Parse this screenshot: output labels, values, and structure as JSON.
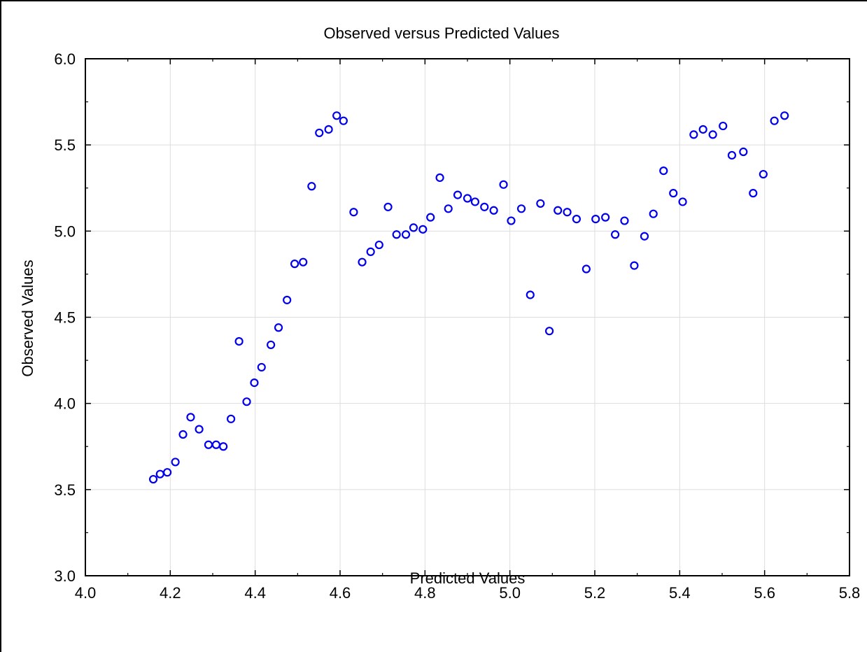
{
  "chart_data": {
    "type": "scatter",
    "title": "Observed versus Predicted Values",
    "xlabel": "Predicted Values",
    "ylabel": "Observed Values",
    "xlim": [
      4.0,
      5.8
    ],
    "ylim": [
      3.0,
      6.0
    ],
    "xticks": [
      "4.0",
      "4.2",
      "4.4",
      "4.6",
      "4.8",
      "5.0",
      "5.2",
      "5.4",
      "5.6",
      "5.8"
    ],
    "yticks": [
      "3.0",
      "3.5",
      "4.0",
      "4.5",
      "5.0",
      "5.5",
      "6.0"
    ],
    "grid": true,
    "marker": "open-circle",
    "color": "#0000ee",
    "points": [
      [
        4.16,
        3.56
      ],
      [
        4.176,
        3.59
      ],
      [
        4.193,
        3.6
      ],
      [
        4.212,
        3.66
      ],
      [
        4.23,
        3.82
      ],
      [
        4.248,
        3.92
      ],
      [
        4.268,
        3.85
      ],
      [
        4.29,
        3.76
      ],
      [
        4.308,
        3.76
      ],
      [
        4.325,
        3.75
      ],
      [
        4.343,
        3.91
      ],
      [
        4.362,
        4.36
      ],
      [
        4.38,
        4.01
      ],
      [
        4.398,
        4.12
      ],
      [
        4.415,
        4.21
      ],
      [
        4.437,
        4.34
      ],
      [
        4.455,
        4.44
      ],
      [
        4.475,
        4.6
      ],
      [
        4.493,
        4.81
      ],
      [
        4.513,
        4.82
      ],
      [
        4.533,
        5.26
      ],
      [
        4.551,
        5.57
      ],
      [
        4.573,
        5.59
      ],
      [
        4.592,
        5.67
      ],
      [
        4.608,
        5.64
      ],
      [
        4.632,
        5.11
      ],
      [
        4.652,
        4.82
      ],
      [
        4.672,
        4.88
      ],
      [
        4.692,
        4.92
      ],
      [
        4.713,
        5.14
      ],
      [
        4.733,
        4.98
      ],
      [
        4.755,
        4.98
      ],
      [
        4.773,
        5.02
      ],
      [
        4.795,
        5.01
      ],
      [
        4.813,
        5.08
      ],
      [
        4.835,
        5.31
      ],
      [
        4.855,
        5.13
      ],
      [
        4.877,
        5.21
      ],
      [
        4.9,
        5.19
      ],
      [
        4.918,
        5.17
      ],
      [
        4.94,
        5.14
      ],
      [
        4.962,
        5.12
      ],
      [
        4.985,
        5.27
      ],
      [
        5.003,
        5.06
      ],
      [
        5.027,
        5.13
      ],
      [
        5.048,
        4.63
      ],
      [
        5.072,
        5.16
      ],
      [
        5.093,
        4.42
      ],
      [
        5.113,
        5.12
      ],
      [
        5.135,
        5.11
      ],
      [
        5.157,
        5.07
      ],
      [
        5.18,
        4.78
      ],
      [
        5.202,
        5.07
      ],
      [
        5.225,
        5.08
      ],
      [
        5.248,
        4.98
      ],
      [
        5.27,
        5.06
      ],
      [
        5.293,
        4.8
      ],
      [
        5.317,
        4.97
      ],
      [
        5.338,
        5.1
      ],
      [
        5.362,
        5.35
      ],
      [
        5.385,
        5.22
      ],
      [
        5.407,
        5.17
      ],
      [
        5.433,
        5.56
      ],
      [
        5.455,
        5.59
      ],
      [
        5.478,
        5.56
      ],
      [
        5.502,
        5.61
      ],
      [
        5.523,
        5.44
      ],
      [
        5.55,
        5.46
      ],
      [
        5.573,
        5.22
      ],
      [
        5.597,
        5.33
      ],
      [
        5.623,
        5.64
      ],
      [
        5.647,
        5.67
      ]
    ]
  }
}
